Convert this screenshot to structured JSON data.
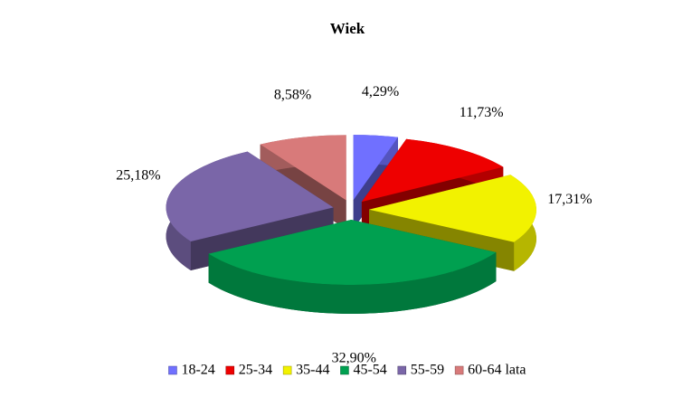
{
  "chart_data": {
    "type": "pie",
    "title": "Wiek",
    "categories": [
      "18-24",
      "25-34",
      "35-44",
      "45-54",
      "55-59",
      "60-64 lata"
    ],
    "values": [
      4.29,
      11.73,
      17.31,
      32.9,
      25.18,
      8.58
    ],
    "value_labels": [
      "4,29%",
      "11,73%",
      "17,31%",
      "32,90%",
      "25,18%",
      "8,58%"
    ],
    "colors": [
      "#7070ff",
      "#ee0000",
      "#f2f200",
      "#00a050",
      "#7a66a8",
      "#d87a7a"
    ],
    "legend": "bottom"
  }
}
